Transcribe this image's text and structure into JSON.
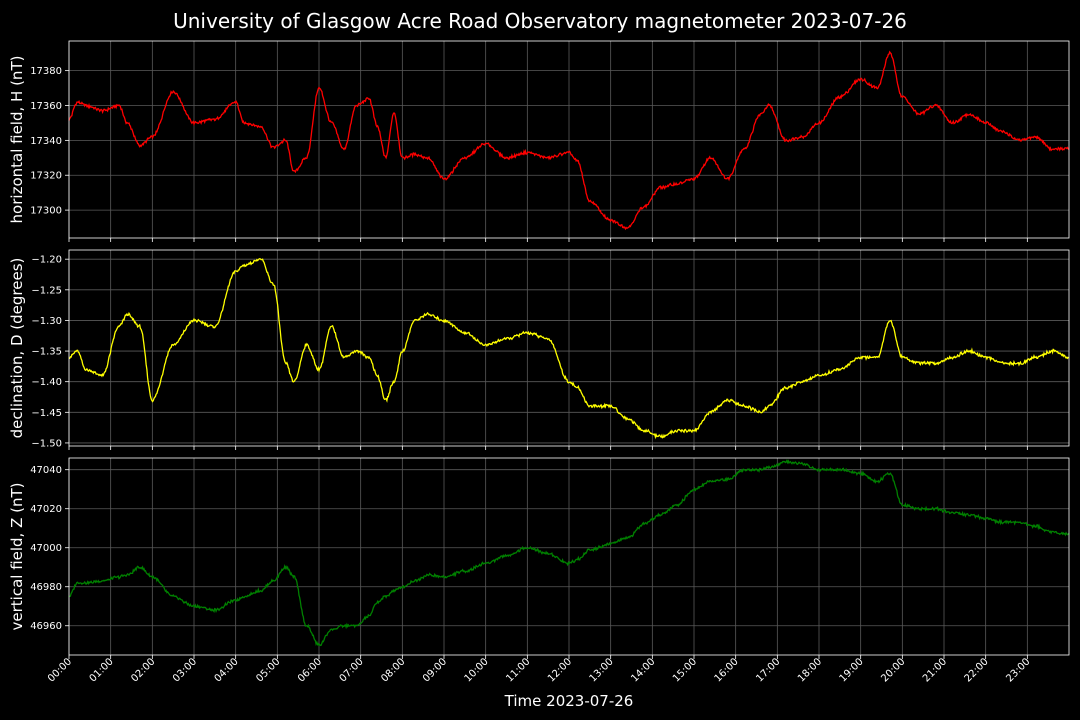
{
  "chart_data": {
    "title": "University of Glasgow Acre Road Observatory magnetometer 2023-07-26",
    "type": "line",
    "xlabel": "Time 2023-07-26",
    "xlim": [
      "00:00",
      "24:00"
    ],
    "x_ticks": [
      "00:00",
      "01:00",
      "02:00",
      "03:00",
      "04:00",
      "05:00",
      "06:00",
      "07:00",
      "08:00",
      "09:00",
      "10:00",
      "11:00",
      "12:00",
      "13:00",
      "14:00",
      "15:00",
      "16:00",
      "17:00",
      "18:00",
      "19:00",
      "20:00",
      "21:00",
      "22:00",
      "23:00"
    ],
    "grid": true,
    "x_hours": [
      0,
      0.2,
      0.4,
      0.8,
      1.2,
      1.4,
      1.7,
      2.0,
      2.5,
      3.0,
      3.5,
      4.0,
      4.2,
      4.6,
      4.9,
      5.2,
      5.4,
      5.7,
      6.0,
      6.3,
      6.6,
      6.9,
      7.2,
      7.4,
      7.6,
      7.8,
      8.0,
      8.3,
      8.6,
      9.0,
      9.5,
      10.0,
      10.5,
      11.0,
      11.5,
      12.0,
      12.2,
      12.5,
      13.0,
      13.4,
      13.8,
      14.2,
      14.6,
      15.0,
      15.4,
      15.8,
      16.2,
      16.6,
      16.8,
      17.2,
      17.6,
      18.0,
      18.5,
      19.0,
      19.4,
      19.7,
      20.0,
      20.4,
      20.8,
      21.2,
      21.6,
      22.0,
      22.4,
      22.8,
      23.2,
      23.6,
      24.0
    ],
    "panels": [
      {
        "name": "H",
        "ylabel": "horizontal field, H (nT)",
        "color": "#ff0000",
        "ylim": [
          17284,
          17397
        ],
        "yticks": [
          17300,
          17320,
          17340,
          17360,
          17380
        ],
        "tick_labels": [
          "17300",
          "17320",
          "17340",
          "17360",
          "17380"
        ],
        "values": [
          17352,
          17362,
          17360,
          17357,
          17360,
          17350,
          17337,
          17342,
          17368,
          17350,
          17352,
          17362,
          17350,
          17348,
          17336,
          17340,
          17322,
          17330,
          17370,
          17350,
          17335,
          17360,
          17364,
          17348,
          17330,
          17356,
          17330,
          17332,
          17330,
          17318,
          17330,
          17338,
          17330,
          17333,
          17330,
          17333,
          17328,
          17305,
          17294,
          17290,
          17302,
          17313,
          17315,
          17318,
          17330,
          17318,
          17335,
          17355,
          17360,
          17340,
          17342,
          17350,
          17365,
          17375,
          17370,
          17390,
          17365,
          17355,
          17360,
          17350,
          17355,
          17350,
          17345,
          17340,
          17342,
          17335,
          17335
        ]
      },
      {
        "name": "D",
        "ylabel": "declination, D (degrees)",
        "color": "#ffff00",
        "ylim": [
          -1.505,
          -1.185
        ],
        "yticks": [
          -1.5,
          -1.45,
          -1.4,
          -1.35,
          -1.3,
          -1.25,
          -1.2
        ],
        "tick_labels": [
          "−1.50",
          "−1.45",
          "−1.40",
          "−1.35",
          "−1.30",
          "−1.25",
          "−1.20"
        ],
        "values": [
          -1.36,
          -1.35,
          -1.38,
          -1.39,
          -1.31,
          -1.29,
          -1.31,
          -1.43,
          -1.34,
          -1.3,
          -1.31,
          -1.22,
          -1.21,
          -1.2,
          -1.24,
          -1.37,
          -1.4,
          -1.34,
          -1.38,
          -1.31,
          -1.36,
          -1.35,
          -1.36,
          -1.39,
          -1.43,
          -1.4,
          -1.35,
          -1.3,
          -1.29,
          -1.3,
          -1.32,
          -1.34,
          -1.33,
          -1.32,
          -1.33,
          -1.4,
          -1.41,
          -1.44,
          -1.44,
          -1.46,
          -1.48,
          -1.49,
          -1.48,
          -1.48,
          -1.45,
          -1.43,
          -1.44,
          -1.45,
          -1.44,
          -1.41,
          -1.4,
          -1.39,
          -1.38,
          -1.36,
          -1.36,
          -1.3,
          -1.36,
          -1.37,
          -1.37,
          -1.36,
          -1.35,
          -1.36,
          -1.37,
          -1.37,
          -1.36,
          -1.35,
          -1.36
        ]
      },
      {
        "name": "Z",
        "ylabel": "vertical field, Z (nT)",
        "color": "#008000",
        "ylim": [
          46945,
          47046
        ],
        "yticks": [
          46960,
          46980,
          47000,
          47020,
          47040
        ],
        "tick_labels": [
          "46960",
          "46980",
          "47000",
          "47020",
          "47040"
        ],
        "values": [
          46975,
          46982,
          46982,
          46983,
          46985,
          46986,
          46990,
          46985,
          46975,
          46970,
          46968,
          46973,
          46975,
          46978,
          46983,
          46990,
          46985,
          46960,
          46950,
          46958,
          46960,
          46960,
          46965,
          46972,
          46975,
          46978,
          46980,
          46983,
          46986,
          46985,
          46988,
          46992,
          46996,
          47000,
          46997,
          46992,
          46994,
          46999,
          47002,
          47005,
          47012,
          47017,
          47022,
          47030,
          47034,
          47035,
          47040,
          47040,
          47041,
          47044,
          47043,
          47040,
          47040,
          47038,
          47034,
          47038,
          47022,
          47020,
          47020,
          47018,
          47017,
          47015,
          47013,
          47013,
          47011,
          47008,
          47007
        ]
      }
    ]
  }
}
